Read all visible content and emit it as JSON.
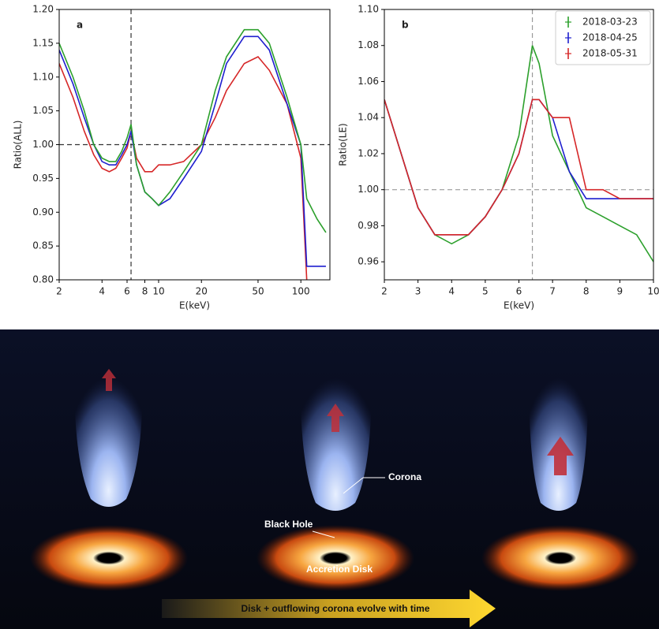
{
  "chart_data": [
    {
      "type": "line",
      "panel_label": "a",
      "y_label": "Ratio(ALL)",
      "x_label": "E(keV)",
      "xscale": "log",
      "xlim": [
        2,
        160
      ],
      "xticks": [
        2,
        4,
        6,
        8,
        10,
        20,
        50,
        100
      ],
      "ylim": [
        0.8,
        1.2
      ],
      "yticks": [
        {
          "value": 0.8,
          "label": "0.80"
        },
        0.85,
        {
          "value": 0.9,
          "label": "0.90"
        },
        0.95,
        {
          "value": 1.0,
          "label": "1.00"
        },
        1.05,
        {
          "value": 1.1,
          "label": "1.10"
        },
        1.15,
        {
          "value": 1.2,
          "label": "1.20"
        }
      ],
      "vline": 6.4,
      "hline": 1.0,
      "x": [
        2,
        2.5,
        3,
        3.5,
        4,
        4.5,
        5,
        5.5,
        6,
        6.4,
        7,
        8,
        9,
        10,
        12,
        15,
        20,
        25,
        30,
        40,
        50,
        60,
        80,
        100,
        110,
        130,
        150
      ],
      "series": [
        {
          "color": "#d62728",
          "values": [
            1.12,
            1.07,
            1.02,
            0.985,
            0.965,
            0.96,
            0.965,
            0.98,
            0.995,
            1.02,
            0.98,
            0.96,
            0.96,
            0.97,
            0.97,
            0.975,
            1.0,
            1.04,
            1.08,
            1.12,
            1.13,
            1.11,
            1.06,
            0.98,
            0.8,
            null,
            null
          ]
        },
        {
          "color": "#1f1fcf",
          "values": [
            1.14,
            1.09,
            1.04,
            1.0,
            0.975,
            0.97,
            0.97,
            0.985,
            1.0,
            1.02,
            0.97,
            0.93,
            0.92,
            0.91,
            0.92,
            0.95,
            0.99,
            1.06,
            1.12,
            1.16,
            1.16,
            1.14,
            1.06,
            1.0,
            0.82,
            0.82,
            0.82
          ]
        },
        {
          "color": "#2ca02c",
          "values": [
            1.15,
            1.1,
            1.05,
            1.0,
            0.98,
            0.975,
            0.975,
            0.99,
            1.01,
            1.03,
            0.97,
            0.93,
            0.92,
            0.91,
            0.93,
            0.96,
            1.0,
            1.08,
            1.13,
            1.17,
            1.17,
            1.15,
            1.07,
            1.0,
            0.92,
            0.89,
            0.87
          ]
        }
      ]
    },
    {
      "type": "line",
      "panel_label": "b",
      "y_label": "Ratio(LE)",
      "x_label": "E(keV)",
      "xscale": "linear",
      "xlim": [
        2,
        10
      ],
      "xticks": [
        2,
        3,
        4,
        5,
        6,
        7,
        8,
        9,
        10
      ],
      "ylim": [
        0.95,
        1.1
      ],
      "yticks": [
        0.96,
        0.98,
        {
          "value": 1.0,
          "label": "1.00"
        },
        1.02,
        1.04,
        1.06,
        1.08,
        {
          "value": 1.1,
          "label": "1.10"
        }
      ],
      "vline": 6.4,
      "hline": 1.0,
      "legend": "upper right",
      "x": [
        2,
        2.5,
        3,
        3.5,
        4,
        4.5,
        5,
        5.5,
        6,
        6.4,
        6.6,
        7,
        7.5,
        8,
        8.5,
        9,
        9.5,
        10
      ],
      "series": [
        {
          "name": "2018-03-23",
          "color": "#2ca02c",
          "values": [
            1.05,
            1.02,
            0.99,
            0.975,
            0.97,
            0.975,
            0.985,
            1.0,
            1.03,
            1.08,
            1.07,
            1.03,
            1.01,
            0.99,
            0.985,
            0.98,
            0.975,
            0.96
          ]
        },
        {
          "name": "2018-04-25",
          "color": "#1f1fcf",
          "values": [
            1.05,
            1.02,
            0.99,
            0.975,
            0.975,
            0.975,
            0.985,
            1.0,
            1.02,
            1.05,
            1.05,
            1.04,
            1.01,
            0.995,
            0.995,
            0.995,
            0.995,
            0.995
          ]
        },
        {
          "name": "2018-05-31",
          "color": "#d62728",
          "values": [
            1.05,
            1.02,
            0.99,
            0.975,
            0.975,
            0.975,
            0.985,
            1.0,
            1.02,
            1.05,
            1.05,
            1.04,
            1.04,
            1.0,
            1.0,
            0.995,
            0.995,
            0.995
          ]
        }
      ]
    }
  ],
  "illustration": {
    "labels": [
      "Corona",
      "Black Hole",
      "Accretion Disk"
    ],
    "arrow_text": "Disk + outflowing corona evolve with time"
  }
}
